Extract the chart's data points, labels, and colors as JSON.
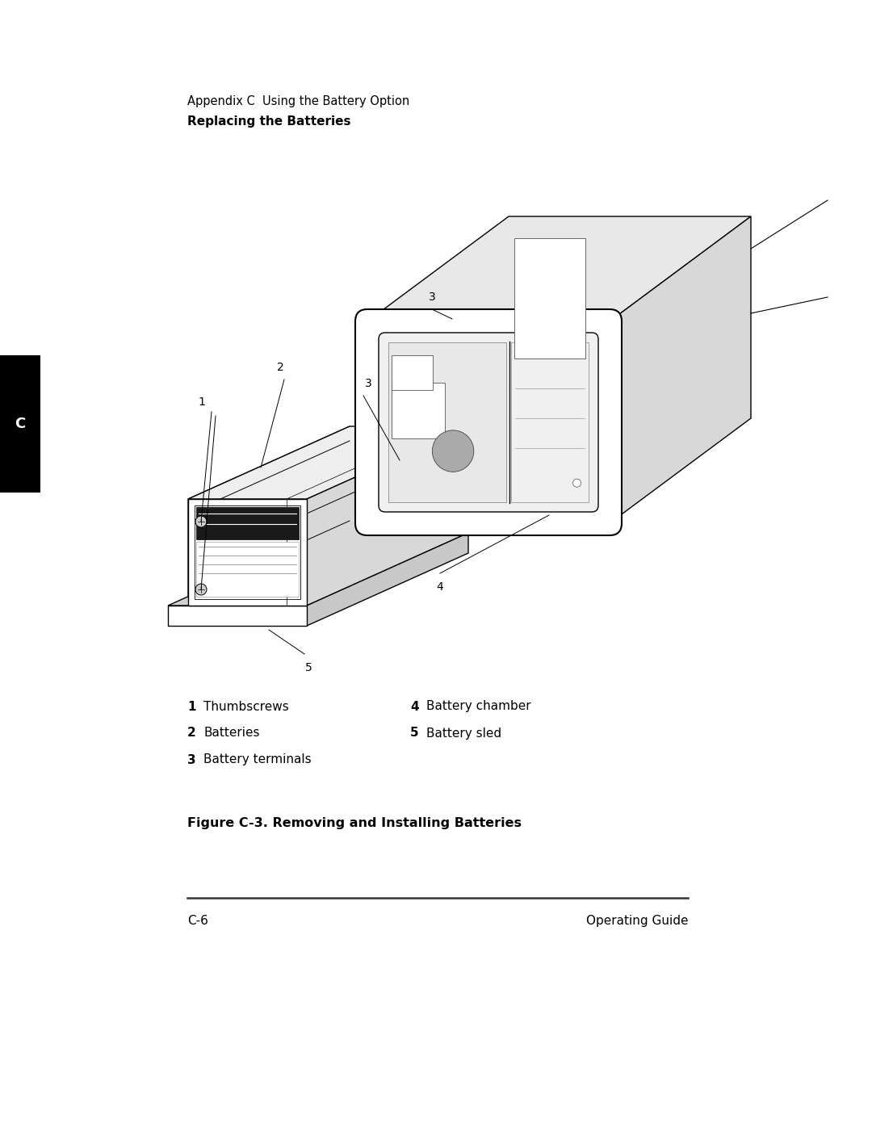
{
  "background_color": "#ffffff",
  "page_width": 10.8,
  "page_height": 13.97,
  "header_line1": "Appendix C  Using the Battery Option",
  "header_line2": "Replacing the Batteries",
  "figure_caption": "Figure C-3. Removing and Installing Batteries",
  "footer_left": "C-6",
  "footer_right": "Operating Guide",
  "legend_items_left": [
    {
      "num": "1",
      "text": "Thumbscrews"
    },
    {
      "num": "2",
      "text": "Batteries"
    },
    {
      "num": "3",
      "text": "Battery terminals"
    }
  ],
  "legend_items_right": [
    {
      "num": "4",
      "text": "Battery chamber"
    },
    {
      "num": "5",
      "text": "Battery sled"
    }
  ],
  "tab_color": "#000000",
  "tab_label": "C",
  "line_color": "#000000",
  "text_color": "#000000"
}
